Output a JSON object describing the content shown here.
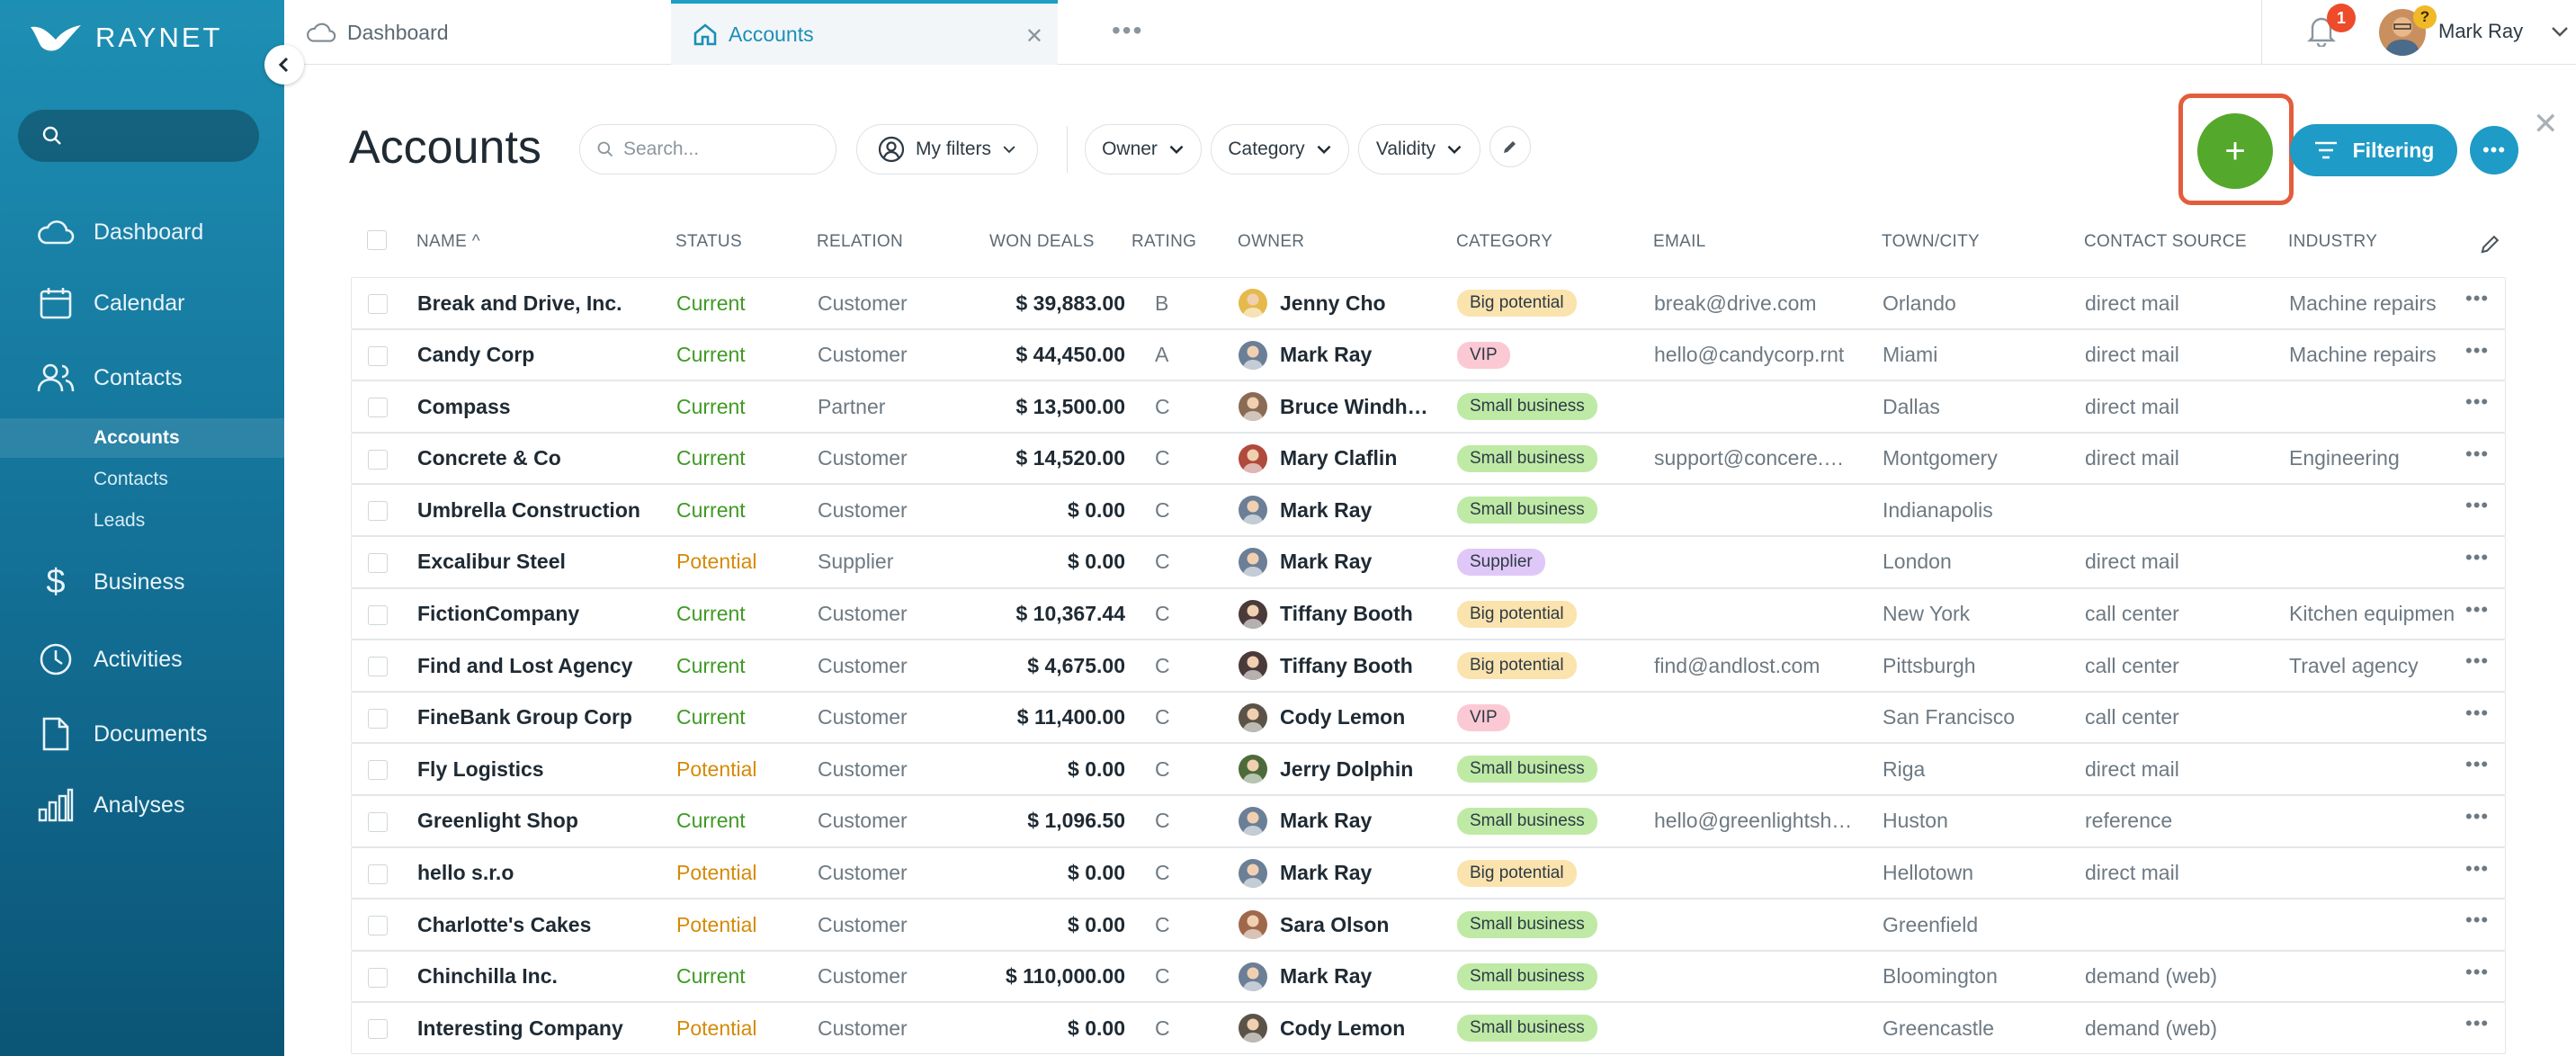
{
  "brand": {
    "name": "RAYNET"
  },
  "sidebar": {
    "search_placeholder": "",
    "nav": [
      {
        "label": "Dashboard",
        "icon": "cloud-icon"
      },
      {
        "label": "Calendar",
        "icon": "calendar-icon"
      },
      {
        "label": "Contacts",
        "icon": "contacts-icon"
      },
      {
        "label": "Business",
        "icon": "dollar-icon"
      },
      {
        "label": "Activities",
        "icon": "clock-icon"
      },
      {
        "label": "Documents",
        "icon": "document-icon"
      },
      {
        "label": "Analyses",
        "icon": "bar-chart-icon"
      }
    ],
    "sub_items": [
      {
        "label": "Accounts",
        "active": true
      },
      {
        "label": "Contacts",
        "active": false
      },
      {
        "label": "Leads",
        "active": false
      }
    ]
  },
  "tabs": [
    {
      "label": "Dashboard",
      "icon": "cloud-icon"
    },
    {
      "label": "Accounts",
      "icon": "home-icon",
      "active": true
    }
  ],
  "tab_more": "•••",
  "notifications": {
    "count": "1"
  },
  "user": {
    "name": "Mark Ray",
    "help": "?"
  },
  "page": {
    "title": "Accounts",
    "search_placeholder": "Search...",
    "my_filters": "My filters",
    "filter_pills": [
      "Owner",
      "Category",
      "Validity"
    ],
    "add_label": "+",
    "filtering_label": "Filtering"
  },
  "columns": [
    "NAME",
    "STATUS",
    "RELATION",
    "WON DEALS",
    "RATING",
    "OWNER",
    "CATEGORY",
    "EMAIL",
    "TOWN/CITY",
    "CONTACT SOURCE",
    "INDUSTRY"
  ],
  "sort_indicator": "^",
  "colors": {
    "current": "#3f9a24",
    "potential": "#d58a07",
    "big_potential": "#fbe3ae",
    "vip": "#fbc9d3",
    "small_business": "#bfeaa6",
    "supplier": "#dfc8f7",
    "accent": "#1e9bc6",
    "add": "#54a82b"
  },
  "rows": [
    {
      "name": "Break and Drive, Inc.",
      "status": "Current",
      "relation": "Customer",
      "won": "$ 39,883.00",
      "rating": "B",
      "owner": "Jenny Cho",
      "owner_color": "#e5b94c",
      "category": "Big potential",
      "email": "break@drive.com",
      "city": "Orlando",
      "source": "direct mail",
      "industry": "Machine repairs"
    },
    {
      "name": "Candy Corp",
      "status": "Current",
      "relation": "Customer",
      "won": "$ 44,450.00",
      "rating": "A",
      "owner": "Mark Ray",
      "owner_color": "#6b7f96",
      "category": "VIP",
      "email": "hello@candycorp.rnt",
      "city": "Miami",
      "source": "direct mail",
      "industry": "Machine repairs"
    },
    {
      "name": "Compass",
      "status": "Current",
      "relation": "Partner",
      "won": "$ 13,500.00",
      "rating": "C",
      "owner": "Bruce Windh…",
      "owner_color": "#8a6b55",
      "category": "Small business",
      "email": "",
      "city": "Dallas",
      "source": "direct mail",
      "industry": ""
    },
    {
      "name": "Concrete & Co",
      "status": "Current",
      "relation": "Customer",
      "won": "$ 14,520.00",
      "rating": "C",
      "owner": "Mary Claflin",
      "owner_color": "#b04a3c",
      "category": "Small business",
      "email": "support@concere.…",
      "city": "Montgomery",
      "source": "direct mail",
      "industry": "Engineering"
    },
    {
      "name": "Umbrella Construction",
      "status": "Current",
      "relation": "Customer",
      "won": "$ 0.00",
      "rating": "C",
      "owner": "Mark Ray",
      "owner_color": "#6b7f96",
      "category": "Small business",
      "email": "",
      "city": "Indianapolis",
      "source": "",
      "industry": ""
    },
    {
      "name": "Excalibur Steel",
      "status": "Potential",
      "relation": "Supplier",
      "won": "$ 0.00",
      "rating": "C",
      "owner": "Mark Ray",
      "owner_color": "#6b7f96",
      "category": "Supplier",
      "email": "",
      "city": "London",
      "source": "direct mail",
      "industry": ""
    },
    {
      "name": "FictionCompany",
      "status": "Current",
      "relation": "Customer",
      "won": "$ 10,367.44",
      "rating": "C",
      "owner": "Tiffany Booth",
      "owner_color": "#4a3a3a",
      "category": "Big potential",
      "email": "",
      "city": "New York",
      "source": "call center",
      "industry": "Kitchen equipmen"
    },
    {
      "name": "Find and Lost Agency",
      "status": "Current",
      "relation": "Customer",
      "won": "$ 4,675.00",
      "rating": "C",
      "owner": "Tiffany Booth",
      "owner_color": "#4a3a3a",
      "category": "Big potential",
      "email": "find@andlost.com",
      "city": "Pittsburgh",
      "source": "call center",
      "industry": "Travel agency"
    },
    {
      "name": "FineBank Group Corp",
      "status": "Current",
      "relation": "Customer",
      "won": "$ 11,400.00",
      "rating": "C",
      "owner": "Cody Lemon",
      "owner_color": "#5b5348",
      "category": "VIP",
      "email": "",
      "city": "San Francisco",
      "source": "call center",
      "industry": ""
    },
    {
      "name": "Fly Logistics",
      "status": "Potential",
      "relation": "Customer",
      "won": "$ 0.00",
      "rating": "C",
      "owner": "Jerry Dolphin",
      "owner_color": "#4d6b3a",
      "category": "Small business",
      "email": "",
      "city": "Riga",
      "source": "direct mail",
      "industry": ""
    },
    {
      "name": "Greenlight Shop",
      "status": "Current",
      "relation": "Customer",
      "won": "$ 1,096.50",
      "rating": "C",
      "owner": "Mark Ray",
      "owner_color": "#6b7f96",
      "category": "Small business",
      "email": "hello@greenlightsh…",
      "city": "Huston",
      "source": "reference",
      "industry": ""
    },
    {
      "name": "hello s.r.o",
      "status": "Potential",
      "relation": "Customer",
      "won": "$ 0.00",
      "rating": "C",
      "owner": "Mark Ray",
      "owner_color": "#6b7f96",
      "category": "Big potential",
      "email": "",
      "city": "Hellotown",
      "source": "direct mail",
      "industry": ""
    },
    {
      "name": "Charlotte's Cakes",
      "status": "Potential",
      "relation": "Customer",
      "won": "$ 0.00",
      "rating": "C",
      "owner": "Sara Olson",
      "owner_color": "#a0684a",
      "category": "Small business",
      "email": "",
      "city": "Greenfield",
      "source": "",
      "industry": ""
    },
    {
      "name": "Chinchilla Inc.",
      "status": "Current",
      "relation": "Customer",
      "won": "$ 110,000.00",
      "rating": "C",
      "owner": "Mark Ray",
      "owner_color": "#6b7f96",
      "category": "Small business",
      "email": "",
      "city": "Bloomington",
      "source": "demand (web)",
      "industry": ""
    },
    {
      "name": "Interesting Company",
      "status": "Potential",
      "relation": "Customer",
      "won": "$ 0.00",
      "rating": "C",
      "owner": "Cody Lemon",
      "owner_color": "#5b5348",
      "category": "Small business",
      "email": "",
      "city": "Greencastle",
      "source": "demand (web)",
      "industry": ""
    }
  ]
}
